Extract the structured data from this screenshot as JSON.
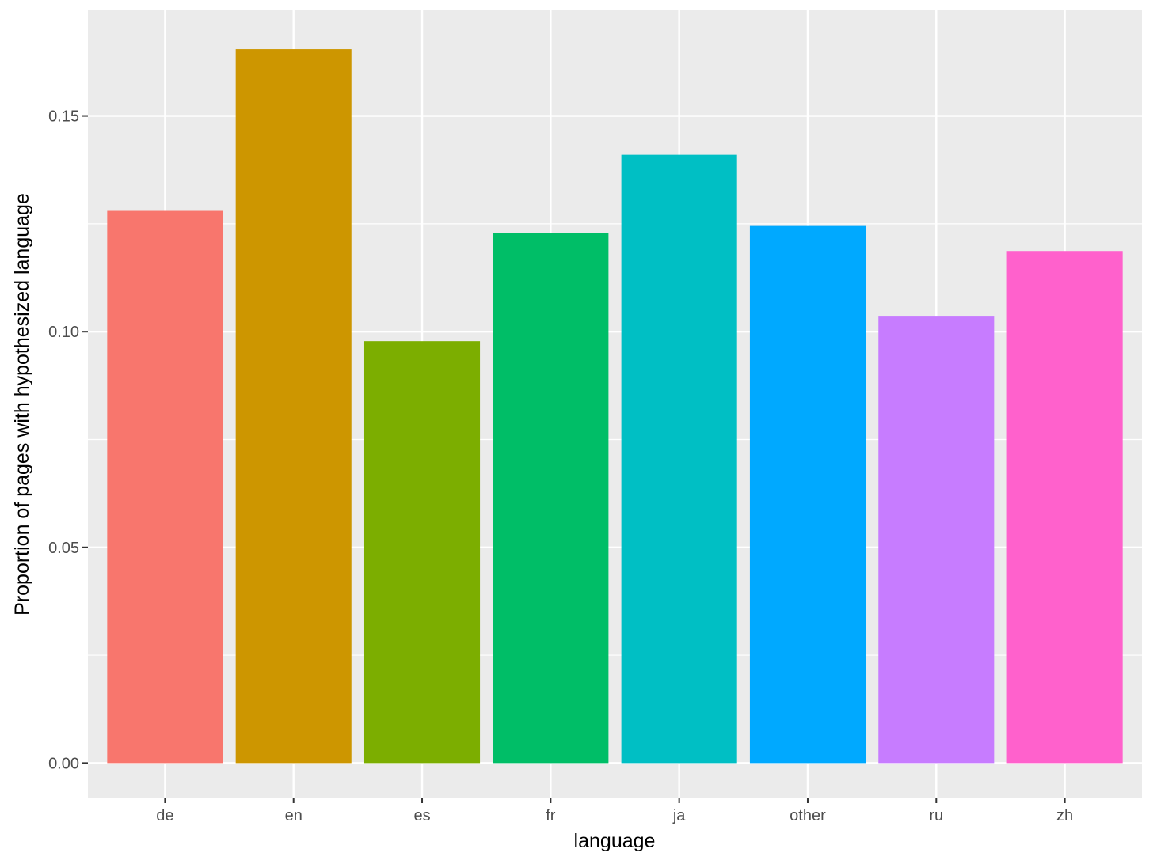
{
  "chart_data": {
    "type": "bar",
    "title": "",
    "xlabel": "language",
    "ylabel": "Proportion of pages with hypothesized language",
    "categories": [
      "de",
      "en",
      "es",
      "fr",
      "ja",
      "other",
      "ru",
      "zh"
    ],
    "values": [
      0.128,
      0.1655,
      0.0978,
      0.1228,
      0.141,
      0.1245,
      0.1035,
      0.1187
    ],
    "colors": [
      "#F8766D",
      "#CD9600",
      "#7CAE00",
      "#00BE67",
      "#00BFC4",
      "#00A9FF",
      "#C77CFF",
      "#FF61CC"
    ],
    "ylim": [
      -0.008,
      0.1745
    ],
    "yticks": [
      0.0,
      0.05,
      0.1,
      0.15
    ],
    "ytick_labels": [
      "0.00",
      "0.05",
      "0.10",
      "0.15"
    ],
    "grid": true,
    "legend": "none",
    "panel_background": "#EBEBEB",
    "gridline_color": "#FFFFFF"
  }
}
